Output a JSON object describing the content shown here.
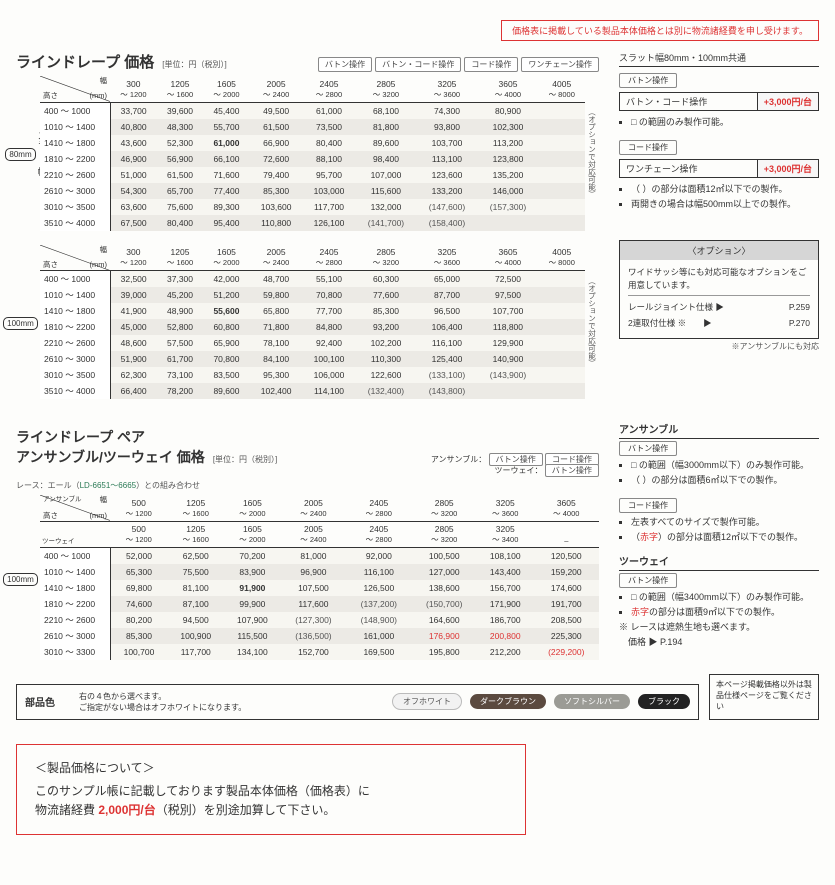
{
  "top_notice": "価格表に掲載している製品本体価格とは別に物流諸経費を申し受けます。",
  "section1": {
    "title": "ラインドレープ 価格",
    "unit": "[単位：円（税別）]",
    "chips": [
      "バトン操作",
      "バトン・コード操作",
      "コード操作",
      "ワンチェーン操作"
    ]
  },
  "side1": {
    "head": "スラット幅80mm・100mm共通",
    "groups": [
      {
        "chip": "バトン操作"
      },
      {
        "surcharge_l": "バトン・コード操作",
        "surcharge_r": "+3,000円/台",
        "notes": [
          "□ の範囲のみ製作可能。"
        ]
      },
      {
        "chip": "コード操作"
      },
      {
        "surcharge_l": "ワンチェーン操作",
        "surcharge_r": "+3,000円/台",
        "notes": [
          "（ ）の部分は面積12㎡以下での製作。",
          "両開きの場合は幅500mm以上での製作。"
        ]
      }
    ]
  },
  "opt": {
    "title": "〈オプション〉",
    "desc": "ワイドサッシ等にも対応可能なオプションをご用意しています。",
    "rows": [
      {
        "l": "レールジョイント仕様 ▶",
        "r": "P.259"
      },
      {
        "l": "2連取付仕様 ※　　▶",
        "r": "P.270"
      }
    ],
    "foot": "※アンサンブルにも対応"
  },
  "table80": {
    "side": "スラット幅",
    "size": "80mm",
    "widths_top": [
      "300",
      "1205",
      "1605",
      "2005",
      "2405",
      "2805",
      "3205",
      "3605",
      "4005"
    ],
    "widths_bot": [
      "～ 1200",
      "～ 1600",
      "～ 2000",
      "～ 2400",
      "～ 2800",
      "～ 3200",
      "～ 3600",
      "～ 4000",
      "～ 8000"
    ],
    "rows": [
      {
        "h": "400 ～ 1000",
        "v": [
          "33,700",
          "39,600",
          "45,400",
          "49,500",
          "61,000",
          "68,100",
          "74,300",
          "80,900",
          ""
        ]
      },
      {
        "h": "1010 ～ 1400",
        "v": [
          "40,800",
          "48,300",
          "55,700",
          "61,500",
          "73,500",
          "81,800",
          "93,800",
          "102,300",
          ""
        ]
      },
      {
        "h": "1410 ～ 1800",
        "v": [
          "43,600",
          "52,300",
          "61,000",
          "66,900",
          "80,400",
          "89,600",
          "103,700",
          "113,200",
          ""
        ],
        "bold": [
          2
        ]
      },
      {
        "h": "1810 ～ 2200",
        "v": [
          "46,900",
          "56,900",
          "66,100",
          "72,600",
          "88,100",
          "98,400",
          "113,100",
          "123,800",
          ""
        ]
      },
      {
        "h": "2210 ～ 2600",
        "v": [
          "51,000",
          "61,500",
          "71,600",
          "79,400",
          "95,700",
          "107,000",
          "123,600",
          "135,200",
          ""
        ]
      },
      {
        "h": "2610 ～ 3000",
        "v": [
          "54,300",
          "65,700",
          "77,400",
          "85,300",
          "103,000",
          "115,600",
          "133,200",
          "146,000",
          ""
        ]
      },
      {
        "h": "3010 ～ 3500",
        "v": [
          "63,600",
          "75,600",
          "89,300",
          "103,600",
          "117,700",
          "132,000",
          "(147,600)",
          "(157,300)",
          ""
        ],
        "paren": [
          6,
          7
        ]
      },
      {
        "h": "3510 ～ 4000",
        "v": [
          "67,500",
          "80,400",
          "95,400",
          "110,800",
          "126,100",
          "(141,700)",
          "(158,400)",
          "",
          ""
        ],
        "paren": [
          5,
          6
        ]
      }
    ],
    "vnote": "（オプションで対応可能）"
  },
  "table100": {
    "side": "スラット幅",
    "size": "100mm",
    "widths_top": [
      "300",
      "1205",
      "1605",
      "2005",
      "2405",
      "2805",
      "3205",
      "3605",
      "4005"
    ],
    "widths_bot": [
      "～ 1200",
      "～ 1600",
      "～ 2000",
      "～ 2400",
      "～ 2800",
      "～ 3200",
      "～ 3600",
      "～ 4000",
      "～ 8000"
    ],
    "rows": [
      {
        "h": "400 ～ 1000",
        "v": [
          "32,500",
          "37,300",
          "42,000",
          "48,700",
          "55,100",
          "60,300",
          "65,000",
          "72,500",
          ""
        ]
      },
      {
        "h": "1010 ～ 1400",
        "v": [
          "39,000",
          "45,200",
          "51,200",
          "59,800",
          "70,800",
          "77,600",
          "87,700",
          "97,500",
          ""
        ]
      },
      {
        "h": "1410 ～ 1800",
        "v": [
          "41,900",
          "48,900",
          "55,600",
          "65,800",
          "77,700",
          "85,300",
          "96,500",
          "107,700",
          ""
        ],
        "bold": [
          2
        ]
      },
      {
        "h": "1810 ～ 2200",
        "v": [
          "45,000",
          "52,800",
          "60,800",
          "71,800",
          "84,800",
          "93,200",
          "106,400",
          "118,800",
          ""
        ]
      },
      {
        "h": "2210 ～ 2600",
        "v": [
          "48,600",
          "57,500",
          "65,900",
          "78,100",
          "92,400",
          "102,200",
          "116,100",
          "129,900",
          ""
        ]
      },
      {
        "h": "2610 ～ 3000",
        "v": [
          "51,900",
          "61,700",
          "70,800",
          "84,100",
          "100,100",
          "110,300",
          "125,400",
          "140,900",
          ""
        ]
      },
      {
        "h": "3010 ～ 3500",
        "v": [
          "62,300",
          "73,100",
          "83,500",
          "95,300",
          "106,000",
          "122,600",
          "(133,100)",
          "(143,900)",
          ""
        ],
        "paren": [
          6,
          7
        ]
      },
      {
        "h": "3510 ～ 4000",
        "v": [
          "66,400",
          "78,200",
          "89,600",
          "102,400",
          "114,100",
          "(132,400)",
          "(143,800)",
          "",
          ""
        ],
        "paren": [
          5,
          6
        ]
      }
    ],
    "vnote": "（オプションで対応可能）"
  },
  "pair": {
    "title1": "ラインドレープ ペア",
    "title2": "アンサンブル/ツーウェイ 価格",
    "unit": "[単位：円（税別）]",
    "lace": "レース：エール（",
    "lace_link": "LD-6651～6665",
    "lace2": "）との組み合わせ",
    "right": [
      {
        "l": "アンサンブル：",
        "chips": [
          "バトン操作",
          "コード操作"
        ]
      },
      {
        "l": "ツーウェイ：",
        "chips": [
          "バトン操作"
        ]
      }
    ]
  },
  "tablePair": {
    "side": "スラット幅",
    "size": "100mm",
    "row_labels": [
      "アンサンブル",
      "ツーウェイ"
    ],
    "widths_top_a": [
      "500",
      "1205",
      "1605",
      "2005",
      "2405",
      "2805",
      "3205",
      "3605"
    ],
    "widths_bot_a": [
      "～ 1200",
      "～ 1600",
      "～ 2000",
      "～ 2400",
      "～ 2800",
      "～ 3200",
      "～ 3600",
      "～ 4000"
    ],
    "widths_top_t": [
      "500",
      "1205",
      "1605",
      "2005",
      "2405",
      "2805",
      "3205",
      ""
    ],
    "widths_bot_t": [
      "～ 1200",
      "～ 1600",
      "～ 2000",
      "～ 2400",
      "～ 2800",
      "～ 3200",
      "～ 3400",
      "–"
    ],
    "rows": [
      {
        "h": "400 ～ 1000",
        "v": [
          "52,000",
          "62,500",
          "70,200",
          "81,000",
          "92,000",
          "100,500",
          "108,100",
          "120,500"
        ]
      },
      {
        "h": "1010 ～ 1400",
        "v": [
          "65,300",
          "75,500",
          "83,900",
          "96,900",
          "116,100",
          "127,000",
          "143,400",
          "159,200"
        ]
      },
      {
        "h": "1410 ～ 1800",
        "v": [
          "69,800",
          "81,100",
          "91,900",
          "107,500",
          "126,500",
          "138,600",
          "156,700",
          "174,600"
        ],
        "bold": [
          2
        ]
      },
      {
        "h": "1810 ～ 2200",
        "v": [
          "74,600",
          "87,100",
          "99,900",
          "117,600",
          "(137,200)",
          "(150,700)",
          "171,900",
          "191,700"
        ],
        "paren": [
          4,
          5
        ]
      },
      {
        "h": "2210 ～ 2600",
        "v": [
          "80,200",
          "94,500",
          "107,900",
          "(127,300)",
          "(148,900)",
          "164,600",
          "186,700",
          "208,500"
        ],
        "paren": [
          3,
          4
        ]
      },
      {
        "h": "2610 ～ 3000",
        "v": [
          "85,300",
          "100,900",
          "115,500",
          "(136,500)",
          "161,000",
          "176,900",
          "200,800",
          "225,300"
        ],
        "paren": [
          3
        ],
        "red": [
          5,
          6
        ]
      },
      {
        "h": "3010 ～ 3300",
        "v": [
          "100,700",
          "117,700",
          "134,100",
          "152,700",
          "169,500",
          "195,800",
          "212,200",
          "(229,200)"
        ],
        "red": [
          7
        ],
        "paren": [
          7
        ]
      }
    ]
  },
  "side2": {
    "ens_title": "アンサンブル",
    "ens_chip": "バトン操作",
    "ens_notes": [
      "□ の範囲（幅3000mm以下）のみ製作可能。",
      "（ ）の部分は面積6㎡以下での製作。"
    ],
    "ens_chip2": "コード操作",
    "ens_notes2": [
      "左表すべてのサイズで製作可能。",
      "（赤字）の部分は面積12㎡以下での製作。"
    ],
    "tw_title": "ツーウェイ",
    "tw_chip": "バトン操作",
    "tw_notes": [
      "□ の範囲（幅3400mm以下）のみ製作可能。",
      "赤字の部分は面積9㎡以下での製作。",
      "※ レースは遮熱生地も選べます。",
      "　価格 ▶ P.194"
    ]
  },
  "parts": {
    "label": "部品色",
    "text": "右の４色から選べます。\nご指定がない場合はオフホワイトになります。",
    "pills": [
      "オフホワイト",
      "ダークブラウン",
      "ソフトシルバー",
      "ブラック"
    ],
    "sidenote": "本ページ掲載価格以外は製品仕様ページをご覧ください"
  },
  "bottom": {
    "h": "＜製品価格について＞",
    "l1": "このサンプル帳に記載しております製品本体価格（価格表）に",
    "fee": "2,000円/台",
    "l2a": "物流諸経費 ",
    "l2b": "（税別）を別途加算して下さい。"
  },
  "corner": {
    "w": "幅",
    "h": "高さ",
    "mm": "(mm)"
  }
}
